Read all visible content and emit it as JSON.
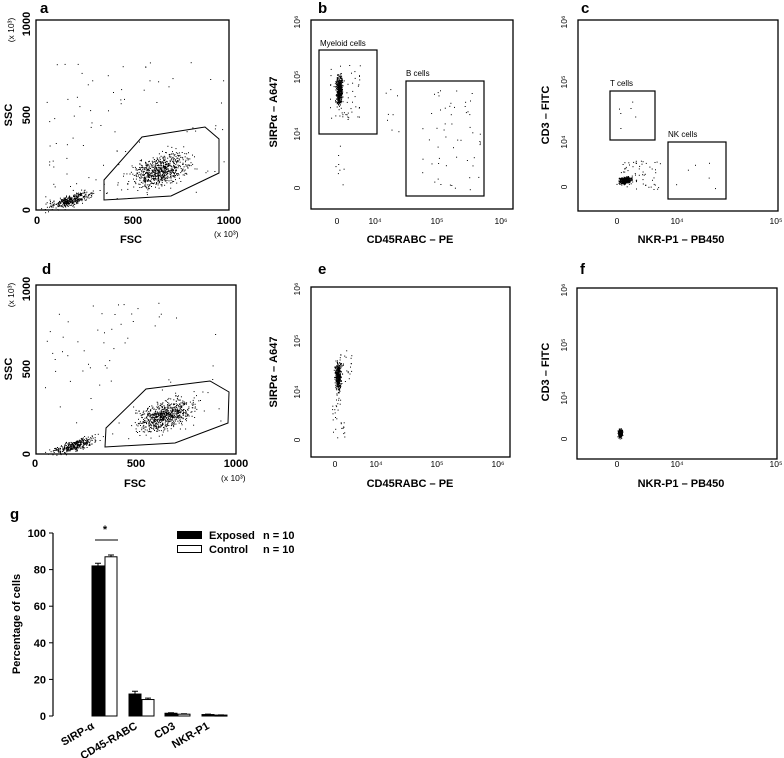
{
  "panels": {
    "a": {
      "label": "a",
      "xlabel": "FSC",
      "ylabel": "SSC",
      "x_unit": "(x 10³)",
      "y_unit": "(x 10³)",
      "xticks": [
        "0",
        "500",
        "1000"
      ],
      "yticks": [
        "0",
        "500",
        "1000"
      ]
    },
    "b": {
      "label": "b",
      "xlabel": "CD45RABC – PE",
      "ylabel": "SIRPα – A647",
      "xticks": [
        "0",
        "10⁴",
        "10⁵",
        "10⁶"
      ],
      "yticks": [
        "0",
        "10⁴",
        "10⁵",
        "10⁶"
      ],
      "gates": [
        "Myeloid cells",
        "B cells"
      ]
    },
    "c": {
      "label": "c",
      "xlabel": "NKR-P1 – PB450",
      "ylabel": "CD3 – FITC",
      "xticks": [
        "0",
        "10⁴",
        "10⁵"
      ],
      "yticks": [
        "0",
        "10⁴",
        "10⁵",
        "10⁶"
      ],
      "gates": [
        "T cells",
        "NK cells"
      ]
    },
    "d": {
      "label": "d",
      "xlabel": "FSC",
      "ylabel": "SSC",
      "x_unit": "(x 10³)",
      "y_unit": "(x 10³)",
      "xticks": [
        "0",
        "500",
        "1000"
      ],
      "yticks": [
        "0",
        "500",
        "1000"
      ]
    },
    "e": {
      "label": "e",
      "xlabel": "CD45RABC – PE",
      "ylabel": "SIRPα – A647",
      "xticks": [
        "0",
        "10⁴",
        "10⁵",
        "10⁶"
      ],
      "yticks": [
        "0",
        "10⁴",
        "10⁵",
        "10⁶"
      ]
    },
    "f": {
      "label": "f",
      "xlabel": "NKR-P1 – PB450",
      "ylabel": "CD3 – FITC",
      "xticks": [
        "0",
        "10⁴",
        "10⁵"
      ],
      "yticks": [
        "0",
        "10⁴",
        "10⁵",
        "10⁶"
      ]
    },
    "g": {
      "label": "g",
      "significance": "*"
    }
  },
  "legend": {
    "exposed_label": "Exposed",
    "exposed_n": "n = 10",
    "control_label": "Control",
    "control_n": "n = 10"
  },
  "chart_data": [
    {
      "type": "scatter",
      "panel": "a",
      "title": "",
      "xlabel": "FSC (x10³)",
      "ylabel": "SSC (x10³)",
      "xlim": [
        0,
        1000
      ],
      "ylim": [
        0,
        1000
      ],
      "gate": "polygon around main population"
    },
    {
      "type": "scatter",
      "panel": "b",
      "xlabel": "CD45RABC – PE",
      "ylabel": "SIRPα – A647",
      "scale": "log",
      "gates": [
        "Myeloid cells",
        "B cells"
      ]
    },
    {
      "type": "scatter",
      "panel": "c",
      "xlabel": "NKR-P1 – PB450",
      "ylabel": "CD3 – FITC",
      "scale": "log",
      "gates": [
        "T cells",
        "NK cells"
      ]
    },
    {
      "type": "scatter",
      "panel": "d",
      "xlabel": "FSC (x10³)",
      "ylabel": "SSC (x10³)",
      "xlim": [
        0,
        1000
      ],
      "ylim": [
        0,
        1000
      ]
    },
    {
      "type": "scatter",
      "panel": "e",
      "xlabel": "CD45RABC – PE",
      "ylabel": "SIRPα – A647",
      "scale": "log"
    },
    {
      "type": "scatter",
      "panel": "f",
      "xlabel": "NKR-P1 – PB450",
      "ylabel": "CD3 – FITC",
      "scale": "log"
    },
    {
      "type": "bar",
      "panel": "g",
      "title": "",
      "xlabel": "",
      "ylabel": "Percentage of cells",
      "categories": [
        "SIRP-α",
        "CD45-RABC",
        "CD3",
        "NKR-P1"
      ],
      "series": [
        {
          "name": "Exposed",
          "n": 10,
          "values": [
            82,
            12,
            1.5,
            0.8
          ],
          "errors": [
            1.5,
            1.5,
            0.3,
            0.2
          ]
        },
        {
          "name": "Control",
          "n": 10,
          "values": [
            87,
            9,
            1.0,
            0.5
          ],
          "errors": [
            1.0,
            0.8,
            0.2,
            0.1
          ]
        }
      ],
      "ylim": [
        0,
        100
      ],
      "yticks": [
        0,
        20,
        40,
        60,
        80,
        100
      ],
      "annotations": [
        {
          "text": "*",
          "between": "SIRP-α Exposed vs Control"
        }
      ],
      "legend_position": "top-right"
    }
  ],
  "gtick_labels": [
    "0",
    "20",
    "40",
    "60",
    "80",
    "100"
  ],
  "gylabel": "Percentage of cells",
  "gcategories": [
    "SIRP-α",
    "CD45-RABC",
    "CD3",
    "NKR-P1"
  ]
}
